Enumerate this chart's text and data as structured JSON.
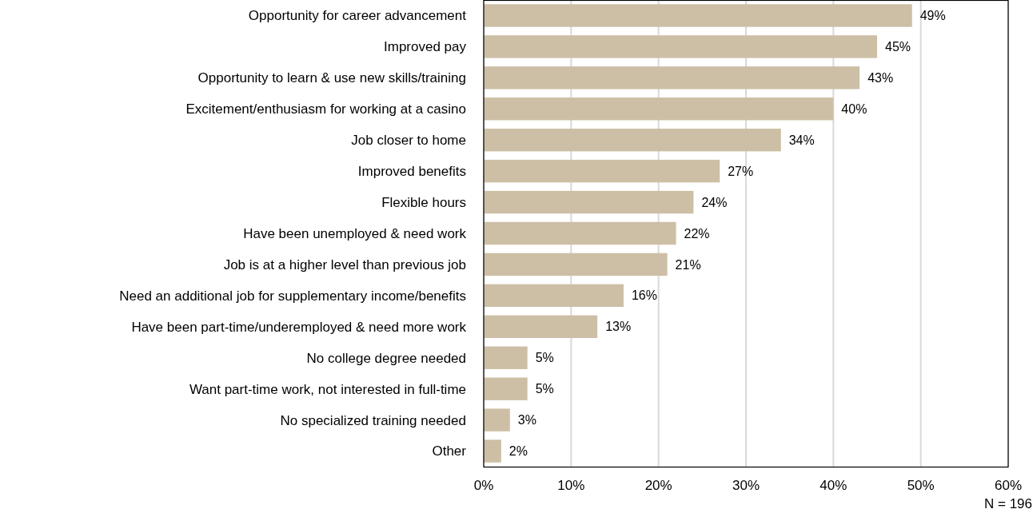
{
  "chart_data": {
    "type": "bar",
    "orientation": "horizontal",
    "categories": [
      "Opportunity for career advancement",
      "Improved pay",
      "Opportunity to learn & use new skills/training",
      "Excitement/enthusiasm for working at a casino",
      "Job closer to home",
      "Improved benefits",
      "Flexible hours",
      "Have been unemployed & need work",
      "Job is at a higher level than previous job",
      "Need an additional job for supplementary income/benefits",
      "Have been part-time/underemployed & need more work",
      "No college degree needed",
      "Want part-time work, not interested in full-time",
      "No specialized training needed",
      "Other"
    ],
    "values": [
      49,
      45,
      43,
      40,
      34,
      27,
      24,
      22,
      21,
      16,
      13,
      5,
      5,
      3,
      2
    ],
    "value_labels": [
      "49%",
      "45%",
      "43%",
      "40%",
      "34%",
      "27%",
      "24%",
      "22%",
      "21%",
      "16%",
      "13%",
      "5%",
      "5%",
      "3%",
      "2%"
    ],
    "color": "#cdbfa6",
    "xlim": [
      0,
      60
    ],
    "xticks": [
      {
        "value": 0,
        "label": "0%"
      },
      {
        "value": 10,
        "label": "10%"
      },
      {
        "value": 20,
        "label": "20%"
      },
      {
        "value": 30,
        "label": "30%"
      },
      {
        "value": 40,
        "label": "40%"
      },
      {
        "value": 50,
        "label": "50%"
      },
      {
        "value": 60,
        "label": "60%"
      }
    ],
    "grid": "x",
    "annotations": [
      "N = 196"
    ]
  }
}
